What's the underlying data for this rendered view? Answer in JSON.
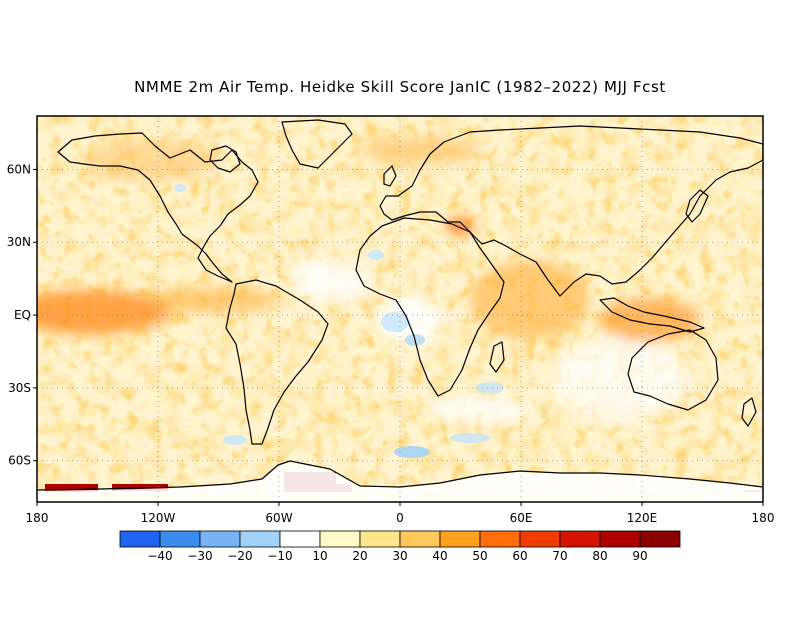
{
  "title": "NMME 2m Air Temp. Heidke Skill Score JanIC (1982–2022) MJJ Fcst",
  "map": {
    "projection": "equirectangular",
    "lon_range": [
      -180,
      180
    ],
    "lat_range": [
      -77,
      82
    ],
    "grid": "dotted",
    "lat_ticks": [
      {
        "lat": 60,
        "label": "60N"
      },
      {
        "lat": 30,
        "label": "30N"
      },
      {
        "lat": 0,
        "label": "EQ"
      },
      {
        "lat": -30,
        "label": "30S"
      },
      {
        "lat": -60,
        "label": "60S"
      }
    ],
    "lon_ticks": [
      {
        "lon": -180,
        "label": "180"
      },
      {
        "lon": -120,
        "label": "120W"
      },
      {
        "lon": -60,
        "label": "60W"
      },
      {
        "lon": 0,
        "label": "0"
      },
      {
        "lon": 60,
        "label": "60E"
      },
      {
        "lon": 120,
        "label": "120E"
      },
      {
        "lon": 180,
        "label": "180"
      }
    ]
  },
  "colorbar": {
    "bins": [
      {
        "color": "#1e64f0",
        "from": -50,
        "to": -40
      },
      {
        "color": "#3c8cf0",
        "from": -40,
        "to": -30
      },
      {
        "color": "#78b4f5",
        "from": -30,
        "to": -20
      },
      {
        "color": "#a0d2fa",
        "from": -20,
        "to": -10
      },
      {
        "color": "#ffffff",
        "from": -10,
        "to": 10
      },
      {
        "color": "#fffac8",
        "from": 10,
        "to": 20
      },
      {
        "color": "#ffe68c",
        "from": 20,
        "to": 30
      },
      {
        "color": "#ffc85a",
        "from": 30,
        "to": 40
      },
      {
        "color": "#ffa01e",
        "from": 40,
        "to": 50
      },
      {
        "color": "#ff6e0a",
        "from": 50,
        "to": 60
      },
      {
        "color": "#f03c00",
        "from": 60,
        "to": 70
      },
      {
        "color": "#d21400",
        "from": 70,
        "to": 80
      },
      {
        "color": "#af0000",
        "from": 80,
        "to": 90
      },
      {
        "color": "#8c0000",
        "from": 90,
        "to": 100
      }
    ],
    "tick_labels": [
      "−40",
      "−30",
      "−20",
      "−10",
      "10",
      "20",
      "30",
      "40",
      "50",
      "60",
      "70",
      "80",
      "90"
    ]
  }
}
